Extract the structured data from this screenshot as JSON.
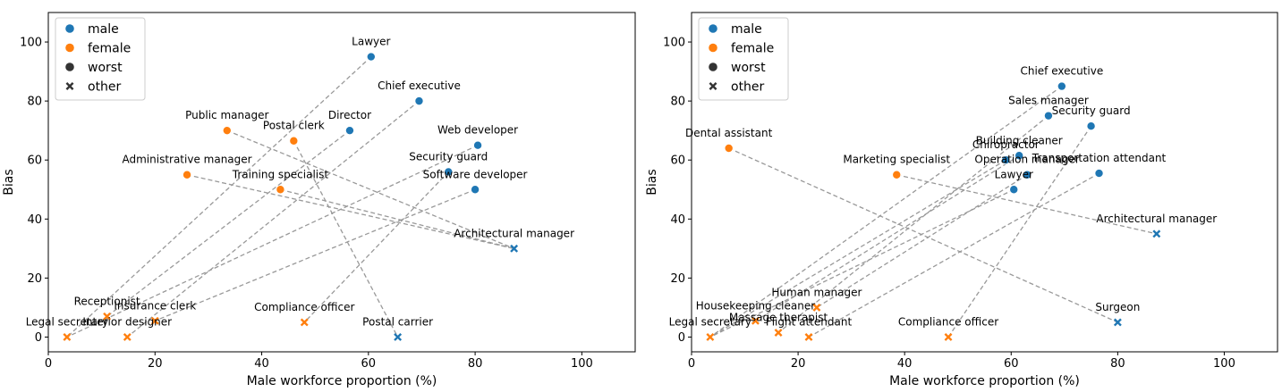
{
  "colors": {
    "male": "#1f77b4",
    "female": "#ff7f0e",
    "connector": "#999999",
    "axis": "#000000"
  },
  "chart_data": [
    {
      "type": "scatter",
      "title": "",
      "xlabel": "Male workforce proportion (%)",
      "ylabel": "Bias",
      "xlim": [
        0,
        110
      ],
      "ylim": [
        -5,
        110
      ],
      "xticks": [
        0,
        20,
        40,
        60,
        80,
        100
      ],
      "yticks": [
        0,
        20,
        40,
        60,
        80,
        100
      ],
      "legend": {
        "position": "top-left",
        "entries": [
          {
            "label": "male",
            "kind": "color",
            "series": "male"
          },
          {
            "label": "female",
            "kind": "color",
            "series": "female"
          },
          {
            "label": "worst",
            "kind": "marker",
            "marker": "circle"
          },
          {
            "label": "other",
            "kind": "marker",
            "marker": "x"
          }
        ]
      },
      "points": [
        {
          "name": "Lawyer",
          "x": 60.5,
          "y": 95,
          "series": "male",
          "marker": "circle"
        },
        {
          "name": "Chief executive",
          "x": 69.5,
          "y": 80,
          "series": "male",
          "marker": "circle"
        },
        {
          "name": "Director",
          "x": 56.5,
          "y": 70,
          "series": "male",
          "marker": "circle"
        },
        {
          "name": "Web developer",
          "x": 80.5,
          "y": 65,
          "series": "male",
          "marker": "circle"
        },
        {
          "name": "Security guard",
          "x": 75,
          "y": 56,
          "series": "male",
          "marker": "circle"
        },
        {
          "name": "Software developer",
          "x": 80,
          "y": 50,
          "series": "male",
          "marker": "circle"
        },
        {
          "name": "Public manager",
          "x": 33.5,
          "y": 70,
          "series": "female",
          "marker": "circle"
        },
        {
          "name": "Postal clerk",
          "x": 46,
          "y": 66.5,
          "series": "female",
          "marker": "circle"
        },
        {
          "name": "Administrative manager",
          "x": 26,
          "y": 55,
          "series": "female",
          "marker": "circle"
        },
        {
          "name": "Training specialist",
          "x": 43.5,
          "y": 50,
          "series": "female",
          "marker": "circle"
        },
        {
          "name": "Architectural manager",
          "x": 87.3,
          "y": 30,
          "series": "male",
          "marker": "x"
        },
        {
          "name": "Postal carrier",
          "x": 65.5,
          "y": 0,
          "series": "male",
          "marker": "x"
        },
        {
          "name": "Receptionist",
          "x": 11,
          "y": 7,
          "series": "female",
          "marker": "x"
        },
        {
          "name": "Insurance clerk",
          "x": 20,
          "y": 5.5,
          "series": "female",
          "marker": "x"
        },
        {
          "name": "Legal secretary",
          "x": 3.5,
          "y": 0,
          "series": "female",
          "marker": "x"
        },
        {
          "name": "Interior designer",
          "x": 14.8,
          "y": 0,
          "series": "female",
          "marker": "x"
        },
        {
          "name": "Compliance officer",
          "x": 48,
          "y": 5,
          "series": "female",
          "marker": "x"
        }
      ],
      "connections": [
        [
          "Lawyer",
          "Legal secretary"
        ],
        [
          "Chief executive",
          "Interior designer"
        ],
        [
          "Director",
          "Receptionist"
        ],
        [
          "Web developer",
          "Legal secretary"
        ],
        [
          "Security guard",
          "Compliance officer"
        ],
        [
          "Software developer",
          "Insurance clerk"
        ],
        [
          "Public manager",
          "Architectural manager"
        ],
        [
          "Postal clerk",
          "Postal carrier"
        ],
        [
          "Administrative manager",
          "Architectural manager"
        ],
        [
          "Training specialist",
          "Architectural manager"
        ]
      ]
    },
    {
      "type": "scatter",
      "title": "",
      "xlabel": "Male workforce proportion (%)",
      "ylabel": "Bias",
      "xlim": [
        0,
        110
      ],
      "ylim": [
        -5,
        110
      ],
      "xticks": [
        0,
        20,
        40,
        60,
        80,
        100
      ],
      "yticks": [
        0,
        20,
        40,
        60,
        80,
        100
      ],
      "legend": {
        "position": "top-left",
        "entries": [
          {
            "label": "male",
            "kind": "color",
            "series": "male"
          },
          {
            "label": "female",
            "kind": "color",
            "series": "female"
          },
          {
            "label": "worst",
            "kind": "marker",
            "marker": "circle"
          },
          {
            "label": "other",
            "kind": "marker",
            "marker": "x"
          }
        ]
      },
      "points": [
        {
          "name": "Chief executive",
          "x": 69.5,
          "y": 85,
          "series": "male",
          "marker": "circle"
        },
        {
          "name": "Sales manager",
          "x": 67,
          "y": 75,
          "series": "male",
          "marker": "circle"
        },
        {
          "name": "Security guard",
          "x": 75,
          "y": 71.5,
          "series": "male",
          "marker": "circle"
        },
        {
          "name": "Building cleaner",
          "x": 61.5,
          "y": 61.5,
          "series": "male",
          "marker": "circle"
        },
        {
          "name": "Chiropractor",
          "x": 59,
          "y": 60,
          "series": "male",
          "marker": "circle"
        },
        {
          "name": "Operation manager",
          "x": 63,
          "y": 55,
          "series": "male",
          "marker": "circle"
        },
        {
          "name": "Transportation attendant",
          "x": 76.5,
          "y": 55.5,
          "series": "male",
          "marker": "circle"
        },
        {
          "name": "Lawyer",
          "x": 60.5,
          "y": 50,
          "series": "male",
          "marker": "circle"
        },
        {
          "name": "Dental assistant",
          "x": 7,
          "y": 64,
          "series": "female",
          "marker": "circle"
        },
        {
          "name": "Marketing specialist",
          "x": 38.5,
          "y": 55,
          "series": "female",
          "marker": "circle"
        },
        {
          "name": "Architectural manager",
          "x": 87.3,
          "y": 35,
          "series": "male",
          "marker": "x"
        },
        {
          "name": "Surgeon",
          "x": 80,
          "y": 5,
          "series": "male",
          "marker": "x"
        },
        {
          "name": "Human manager",
          "x": 23.5,
          "y": 10,
          "series": "female",
          "marker": "x"
        },
        {
          "name": "Housekeeping cleaner",
          "x": 12,
          "y": 5.5,
          "series": "female",
          "marker": "x"
        },
        {
          "name": "Massage therapist",
          "x": 16.3,
          "y": 1.5,
          "series": "female",
          "marker": "x"
        },
        {
          "name": "Legal secretary",
          "x": 3.5,
          "y": 0,
          "series": "female",
          "marker": "x"
        },
        {
          "name": "Flight attendant",
          "x": 22,
          "y": 0,
          "series": "female",
          "marker": "x"
        },
        {
          "name": "Compliance officer",
          "x": 48.2,
          "y": 0,
          "series": "female",
          "marker": "x"
        }
      ],
      "connections": [
        [
          "Chief executive",
          "Legal secretary"
        ],
        [
          "Sales manager",
          "Massage therapist"
        ],
        [
          "Security guard",
          "Compliance officer"
        ],
        [
          "Building cleaner",
          "Housekeeping cleaner"
        ],
        [
          "Chiropractor",
          "Legal secretary"
        ],
        [
          "Operation manager",
          "Human manager"
        ],
        [
          "Transportation attendant",
          "Flight attendant"
        ],
        [
          "Lawyer",
          "Legal secretary"
        ],
        [
          "Dental assistant",
          "Surgeon"
        ],
        [
          "Marketing specialist",
          "Architectural manager"
        ]
      ]
    }
  ]
}
